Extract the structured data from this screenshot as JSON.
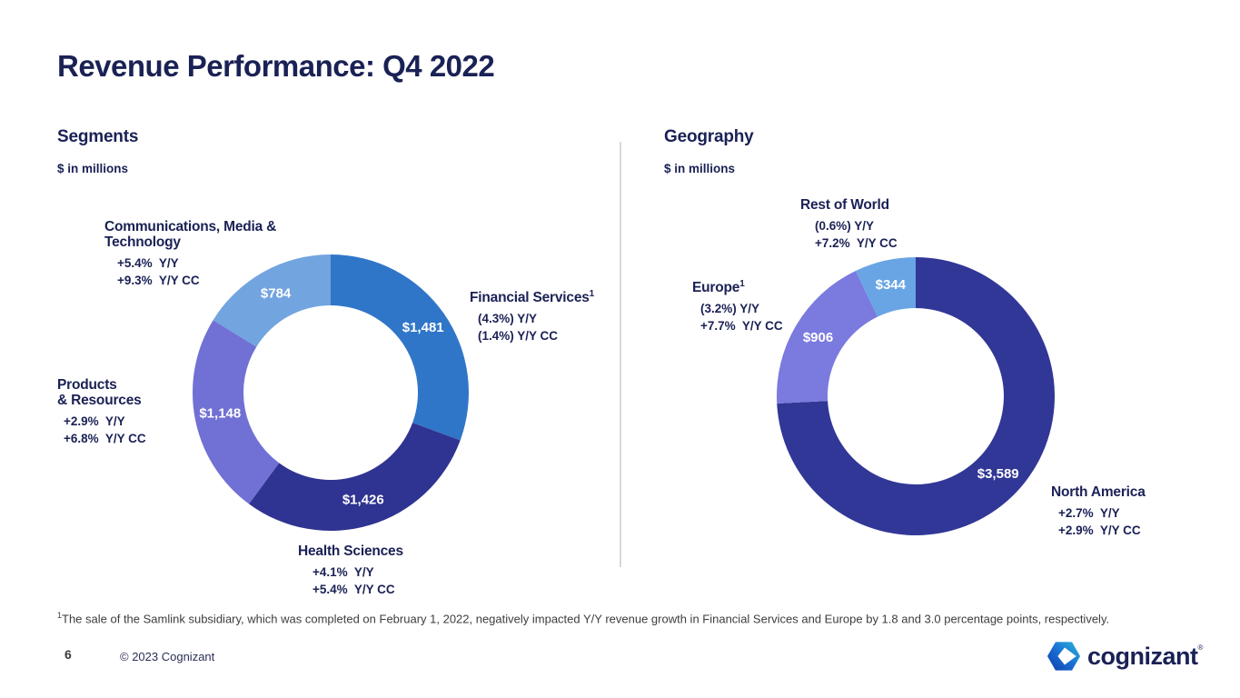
{
  "slide": {
    "title": "Revenue Performance: Q4 2022",
    "page_number": "6",
    "copyright": "© 2023 Cognizant",
    "footnote_marker": "1",
    "footnote": "The sale of the Samlink subsidiary, which was completed on February 1, 2022, negatively impacted Y/Y revenue growth in Financial Services and Europe by 1.8 and 3.0 percentage points, respectively.",
    "logo_text": "cognizant",
    "logo_reg": "®"
  },
  "colors": {
    "navy_text": "#1A2155",
    "divider": "#D8D8D8",
    "footnote_text": "#3D3D3D",
    "value_label": "#FFFFFF"
  },
  "chart_data": [
    {
      "type": "pie",
      "variant": "donut",
      "title": "Segments",
      "subtitle": "$ in millions",
      "total": 4839,
      "direction": "clockwise",
      "start_angle_deg": 0,
      "segments": [
        {
          "label": "Financial Services",
          "footnote_ref": "1",
          "label_display": "Financial Services",
          "value": 1481,
          "display_value": "$1,481",
          "yoy": "(4.3%) Y/Y",
          "yoy_cc": "(1.4%) Y/Y CC",
          "color": "#3076C8"
        },
        {
          "label": "Health Sciences",
          "label_display": "Health Sciences",
          "value": 1426,
          "display_value": "$1,426",
          "yoy": "+4.1%  Y/Y",
          "yoy_cc": "+5.4%  Y/Y CC",
          "color": "#2F3391"
        },
        {
          "label": "Products & Resources",
          "label_display": "Products\n& Resources",
          "value": 1148,
          "display_value": "$1,148",
          "yoy": "+2.9%  Y/Y",
          "yoy_cc": "+6.8%  Y/Y CC",
          "color": "#7170D4"
        },
        {
          "label": "Communications, Media & Technology",
          "label_display": "Communications, Media &\nTechnology",
          "value": 784,
          "display_value": "$784",
          "yoy": "+5.4%  Y/Y",
          "yoy_cc": "+9.3%  Y/Y CC",
          "color": "#72A4DF"
        }
      ]
    },
    {
      "type": "pie",
      "variant": "donut",
      "title": "Geography",
      "subtitle": "$ in millions",
      "total": 4839,
      "direction": "clockwise",
      "start_angle_deg": 0,
      "segments": [
        {
          "label": "North America",
          "label_display": "North America",
          "value": 3589,
          "display_value": "$3,589",
          "yoy": "+2.7%  Y/Y",
          "yoy_cc": "+2.9%  Y/Y CC",
          "color": "#313796"
        },
        {
          "label": "Europe",
          "footnote_ref": "1",
          "label_display": "Europe",
          "value": 906,
          "display_value": "$906",
          "yoy": "(3.2%) Y/Y",
          "yoy_cc": "+7.7%  Y/Y CC",
          "color": "#7B7ADF"
        },
        {
          "label": "Rest of World",
          "label_display": "Rest of World",
          "value": 344,
          "display_value": "$344",
          "yoy": "(0.6%) Y/Y",
          "yoy_cc": "+7.2%  Y/Y CC",
          "color": "#69A5E5"
        }
      ]
    }
  ]
}
